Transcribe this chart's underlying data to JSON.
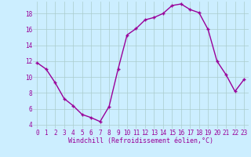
{
  "hours": [
    0,
    1,
    2,
    3,
    4,
    5,
    6,
    7,
    8,
    9,
    10,
    11,
    12,
    13,
    14,
    15,
    16,
    17,
    18,
    19,
    20,
    21,
    22,
    23
  ],
  "windchill": [
    11.8,
    11.0,
    9.3,
    7.3,
    6.4,
    5.3,
    4.9,
    4.4,
    6.3,
    11.0,
    15.3,
    16.1,
    17.2,
    17.5,
    18.0,
    19.0,
    19.2,
    18.5,
    18.1,
    16.0,
    12.0,
    10.3,
    8.2,
    9.7
  ],
  "line_color": "#990099",
  "marker": "+",
  "marker_size": 3,
  "marker_linewidth": 1.0,
  "bg_color": "#cceeff",
  "grid_color": "#aacccc",
  "xlabel": "Windchill (Refroidissement éolien,°C)",
  "xlabel_color": "#990099",
  "tick_color": "#990099",
  "ylim": [
    3.5,
    19.5
  ],
  "xlim": [
    -0.5,
    23.5
  ],
  "yticks": [
    4,
    6,
    8,
    10,
    12,
    14,
    16,
    18
  ],
  "xticks": [
    0,
    1,
    2,
    3,
    4,
    5,
    6,
    7,
    8,
    9,
    10,
    11,
    12,
    13,
    14,
    15,
    16,
    17,
    18,
    19,
    20,
    21,
    22,
    23
  ],
  "tick_fontsize": 5.5,
  "xlabel_fontsize": 6,
  "linewidth": 1.0
}
